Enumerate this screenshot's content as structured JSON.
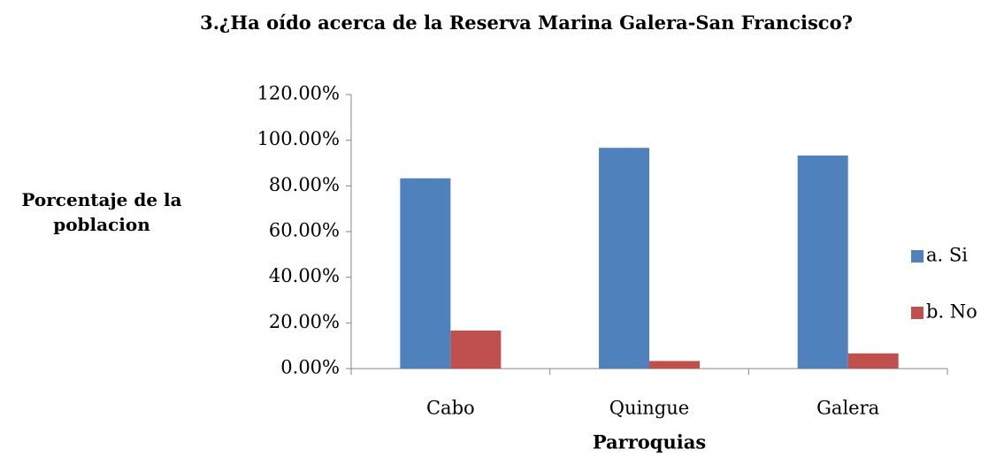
{
  "chart_data": {
    "type": "bar",
    "title": "3.¿Ha oído acerca de la Reserva Marina Galera-San Francisco?",
    "y_label": "Porcentaje de la poblacion",
    "x_label": "Parroquias",
    "categories": [
      "Cabo",
      "Quingue",
      "Galera"
    ],
    "series": [
      {
        "name": "a. Si",
        "color": "#4f81bd",
        "values": [
          83.33,
          96.67,
          93.33
        ]
      },
      {
        "name": "b. No",
        "color": "#c0504d",
        "values": [
          16.67,
          3.33,
          6.67
        ]
      }
    ],
    "ylim": [
      0,
      120
    ],
    "yticks": [
      {
        "value": 0,
        "label": "0.00%"
      },
      {
        "value": 20,
        "label": "20.00%"
      },
      {
        "value": 40,
        "label": "40.00%"
      },
      {
        "value": 60,
        "label": "60.00%"
      },
      {
        "value": 80,
        "label": "80.00%"
      },
      {
        "value": 100,
        "label": "100.00%"
      },
      {
        "value": 120,
        "label": "120.00%"
      }
    ],
    "grid": false,
    "legend": "right"
  }
}
